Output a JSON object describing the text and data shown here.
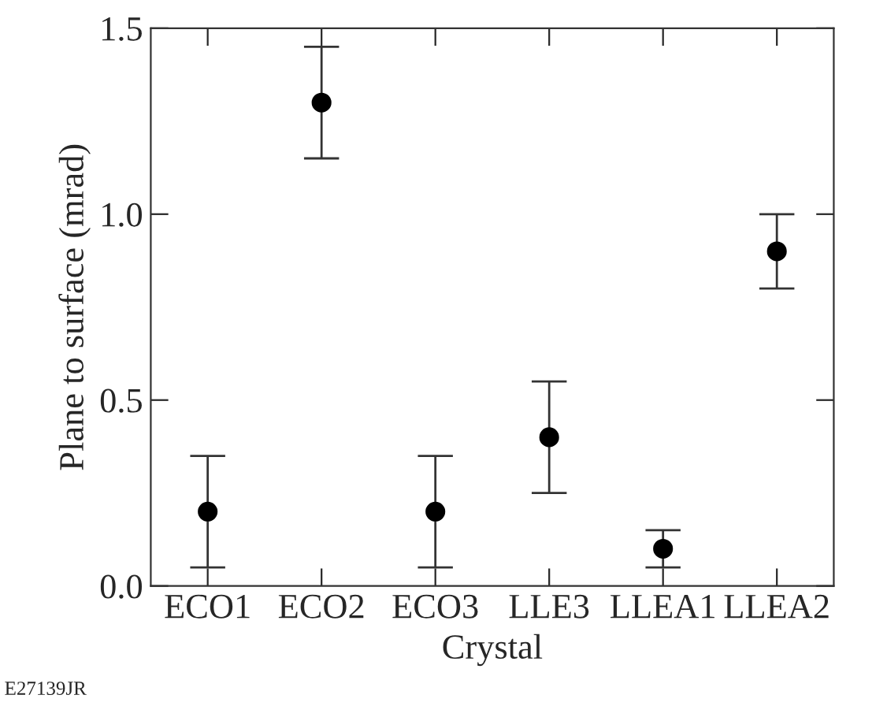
{
  "chart_data": {
    "type": "scatter",
    "xlabel": "Crystal",
    "ylabel": "Plane to surface (mrad)",
    "categories": [
      "ECO1",
      "ECO2",
      "ECO3",
      "LLE3",
      "LLEA1",
      "LLEA2"
    ],
    "values": [
      0.2,
      1.3,
      0.2,
      0.4,
      0.1,
      0.9
    ],
    "errors": [
      [
        0.05,
        0.35
      ],
      [
        1.15,
        1.45
      ],
      [
        0.05,
        0.35
      ],
      [
        0.25,
        0.55
      ],
      [
        0.05,
        0.15
      ],
      [
        0.8,
        1.0
      ]
    ],
    "color": "#000000",
    "marker": "circle",
    "ylim": [
      0,
      1.5
    ],
    "yticks": [
      {
        "value": 0,
        "label": "0.0"
      },
      0.5,
      {
        "value": 1,
        "label": "1.0"
      },
      1.5
    ],
    "grid": false,
    "annotations": [
      "E27139JR"
    ]
  }
}
